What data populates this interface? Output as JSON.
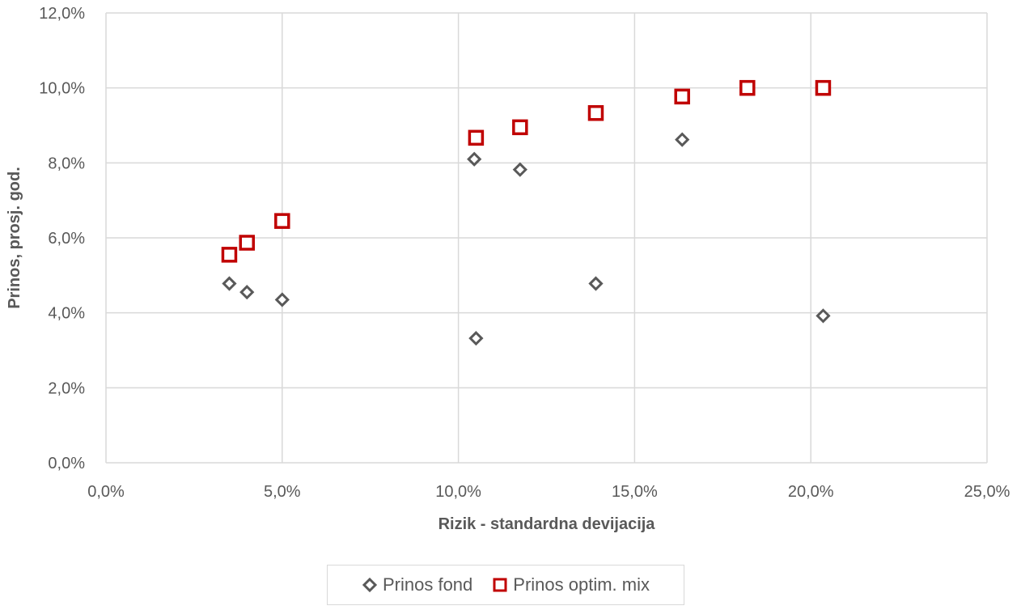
{
  "chart_data": {
    "type": "scatter",
    "title": "",
    "xlabel": "Rizik - standardna devijacija",
    "ylabel": "Prinos, prosj. god.",
    "xlim": [
      0,
      25
    ],
    "ylim": [
      0,
      12
    ],
    "x_ticks": [
      "0,0%",
      "5,0%",
      "10,0%",
      "15,0%",
      "20,0%",
      "25,0%"
    ],
    "y_ticks": [
      "0,0%",
      "2,0%",
      "4,0%",
      "6,0%",
      "8,0%",
      "10,0%",
      "12,0%"
    ],
    "grid": true,
    "legend_position": "bottom",
    "series": [
      {
        "name": "Prinos fond",
        "marker": "diamond",
        "color": "#595959",
        "points": [
          {
            "x": 3.5,
            "y": 4.78
          },
          {
            "x": 4.0,
            "y": 4.55
          },
          {
            "x": 5.0,
            "y": 4.35
          },
          {
            "x": 10.45,
            "y": 8.1
          },
          {
            "x": 10.5,
            "y": 3.32
          },
          {
            "x": 11.75,
            "y": 7.82
          },
          {
            "x": 13.9,
            "y": 4.78
          },
          {
            "x": 16.35,
            "y": 8.62
          },
          {
            "x": 20.35,
            "y": 3.92
          }
        ]
      },
      {
        "name": "Prinos optim. mix",
        "marker": "square",
        "color": "#c00000",
        "points": [
          {
            "x": 3.5,
            "y": 5.55
          },
          {
            "x": 4.0,
            "y": 5.87
          },
          {
            "x": 5.0,
            "y": 6.45
          },
          {
            "x": 10.5,
            "y": 8.67
          },
          {
            "x": 11.75,
            "y": 8.95
          },
          {
            "x": 13.9,
            "y": 9.33
          },
          {
            "x": 16.35,
            "y": 9.77
          },
          {
            "x": 18.2,
            "y": 10.0
          },
          {
            "x": 20.35,
            "y": 10.0
          }
        ]
      }
    ]
  }
}
